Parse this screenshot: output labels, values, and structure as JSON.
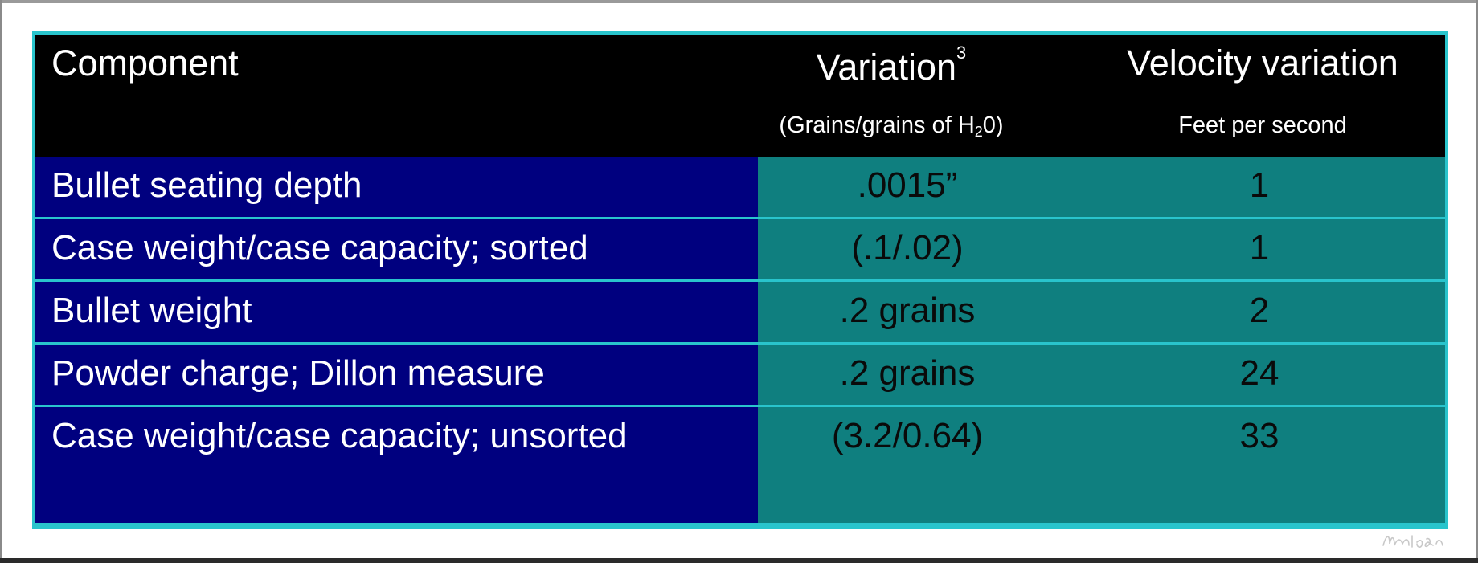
{
  "table": {
    "headers": {
      "component": "Component",
      "variation": "Variation",
      "variation_superscript": "3",
      "velocity": "Velocity variation",
      "variation_unit_prefix": "(Grains/grains of  H",
      "variation_unit_subscript": "2",
      "variation_unit_suffix": "0)",
      "velocity_unit": "Feet per second"
    },
    "rows": [
      {
        "component": "Bullet seating depth",
        "variation": ".0015”",
        "velocity": "1"
      },
      {
        "component": "Case weight/case capacity; sorted",
        "variation": "(.1/.02)",
        "velocity": "1"
      },
      {
        "component": "Bullet weight",
        "variation": ".2 grains",
        "velocity": "2"
      },
      {
        "component": "Powder charge; Dillon measure",
        "variation": ".2 grains",
        "velocity": "24"
      },
      {
        "component": "Case weight/case capacity; unsorted",
        "variation": "(3.2/0.64)",
        "velocity": "33"
      }
    ]
  },
  "colors": {
    "header_bg": "#000000",
    "component_bg": "#00007f",
    "value_bg": "#0f7f7f",
    "border": "#29c4cc"
  }
}
